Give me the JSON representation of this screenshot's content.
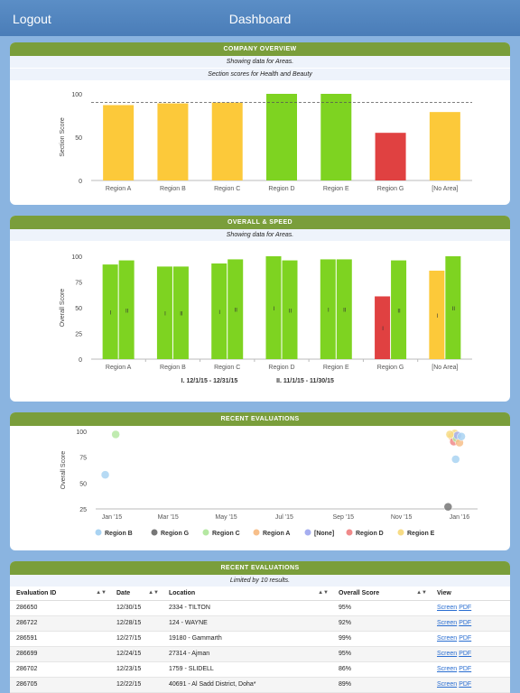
{
  "topbar": {
    "logout": "Logout",
    "title": "Dashboard"
  },
  "company": {
    "header": "COMPANY OVERVIEW",
    "sub1": "Showing data for Areas.",
    "sub2": "Section scores for Health and Beauty",
    "ylabel": "Section Score",
    "ticks": [
      "100",
      "50",
      "0"
    ]
  },
  "overall": {
    "header": "OVERALL & SPEED",
    "sub1": "Showing data for Areas.",
    "ylabel": "Overall Score",
    "ticks": [
      "100",
      "75",
      "50",
      "25",
      "0"
    ],
    "legend1": "I. 12/1/15 - 12/31/15",
    "legend2": "II. 11/1/15 - 11/30/15",
    "mark1": "I",
    "mark2": "II"
  },
  "recent_chart": {
    "header": "RECENT EVALUATIONS",
    "ylabel": "Overall Score",
    "ticks": [
      "100",
      "75",
      "50",
      "25"
    ],
    "xticks": [
      "Jan '15",
      "Mar '15",
      "May '15",
      "Jul '15",
      "Sep '15",
      "Nov '15",
      "Jan '16"
    ]
  },
  "recent_table": {
    "header": "RECENT EVALUATIONS",
    "sub1": "Limited by 10 results.",
    "columns": [
      "Evaluation ID",
      "Date",
      "Location",
      "Overall Score",
      "View"
    ],
    "screen_label": "Screen",
    "pdf_label": "PDF",
    "rows": [
      {
        "id": "286650",
        "date": "12/30/15",
        "location": "2334 - TILTON",
        "score": "95%"
      },
      {
        "id": "286722",
        "date": "12/28/15",
        "location": "124 - WAYNE",
        "score": "92%"
      },
      {
        "id": "286591",
        "date": "12/27/15",
        "location": "19180 - Gammarth",
        "score": "99%"
      },
      {
        "id": "286699",
        "date": "12/24/15",
        "location": "27314 - Ajman",
        "score": "95%"
      },
      {
        "id": "286702",
        "date": "12/23/15",
        "location": "1759 - SLIDELL",
        "score": "86%"
      },
      {
        "id": "286705",
        "date": "12/22/15",
        "location": "40691 - Al Sadd District, Doha*",
        "score": "89%"
      }
    ]
  },
  "colors": {
    "green": "#7ed321",
    "yellow": "#fcc93a",
    "red": "#e04141",
    "header": "#7a9e3b"
  },
  "chart_data": [
    {
      "type": "bar",
      "title": "",
      "ylabel": "Section Score",
      "ylim": [
        0,
        100
      ],
      "reference_line": 90,
      "categories": [
        "Region A",
        "Region B",
        "Region C",
        "Region D",
        "Region E",
        "Region G",
        "[No Area]"
      ],
      "values": [
        87,
        89,
        90,
        100,
        100,
        55,
        79
      ],
      "bar_colors": [
        "yellow",
        "yellow",
        "yellow",
        "green",
        "green",
        "red",
        "yellow"
      ]
    },
    {
      "type": "bar",
      "ylabel": "Overall Score",
      "ylim": [
        0,
        100
      ],
      "categories": [
        "Region A",
        "Region B",
        "Region C",
        "Region D",
        "Region E",
        "Region G",
        "[No Area]"
      ],
      "series": [
        {
          "name": "I. 12/1/15 - 12/31/15",
          "values": [
            92,
            90,
            93,
            100,
            97,
            61,
            86
          ],
          "colors": [
            "green",
            "green",
            "green",
            "green",
            "green",
            "red",
            "yellow"
          ]
        },
        {
          "name": "II. 11/1/15 - 11/30/15",
          "values": [
            96,
            90,
            97,
            96,
            97,
            96,
            100
          ],
          "colors": [
            "green",
            "green",
            "green",
            "green",
            "green",
            "green",
            "green"
          ]
        }
      ]
    },
    {
      "type": "scatter",
      "ylabel": "Overall Score",
      "ylim": [
        25,
        100
      ],
      "xrange": [
        "Dec '14",
        "Jan '16"
      ],
      "legend": [
        "Region B",
        "Region G",
        "Region C",
        "Region A",
        "[None]",
        "Region D",
        "Region E"
      ],
      "legend_colors": [
        "#a9d3f2",
        "#777777",
        "#b5e8a2",
        "#f7bf8a",
        "#a6aef0",
        "#f08a8a",
        "#f7dc85"
      ],
      "points": [
        {
          "x": "2014-12-25",
          "y": 58,
          "series": "Region B"
        },
        {
          "x": "2015-01-05",
          "y": 97,
          "series": "Region C"
        },
        {
          "x": "2015-12-20",
          "y": 27,
          "series": "Region G"
        },
        {
          "x": "2015-12-28",
          "y": 73,
          "series": "Region B"
        },
        {
          "x": "2015-12-24",
          "y": 95,
          "series": "Region A"
        },
        {
          "x": "2015-12-26",
          "y": 90,
          "series": "Region D"
        },
        {
          "x": "2015-12-27",
          "y": 98,
          "series": "Region E"
        },
        {
          "x": "2015-12-29",
          "y": 93,
          "series": "Region C"
        },
        {
          "x": "2015-12-30",
          "y": 96,
          "series": "[None]"
        },
        {
          "x": "2016-01-01",
          "y": 89,
          "series": "Region A"
        },
        {
          "x": "2015-12-22",
          "y": 97,
          "series": "Region E"
        },
        {
          "x": "2016-01-03",
          "y": 95,
          "series": "Region B"
        }
      ]
    }
  ]
}
